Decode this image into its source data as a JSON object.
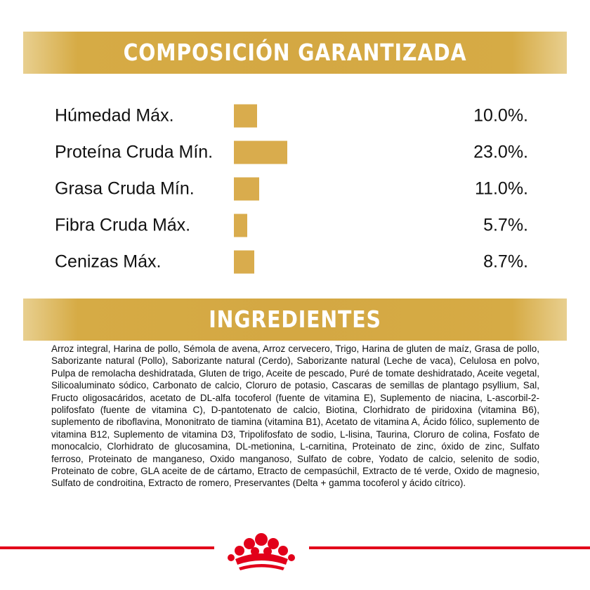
{
  "chart_data": {
    "type": "bar",
    "orientation": "horizontal",
    "title": "COMPOSICIÓN GARANTIZADA",
    "categories": [
      "Húmedad Máx.",
      "Proteína Cruda Mín.",
      "Grasa Cruda Mín.",
      "Fibra Cruda Máx.",
      "Cenizas Máx."
    ],
    "values": [
      10.0,
      23.0,
      11.0,
      5.7,
      8.7
    ],
    "value_labels": [
      "10.0%.",
      "23.0%.",
      "11.0%.",
      "5.7%.",
      "8.7%."
    ],
    "color": "#d9ac4d"
  },
  "ingredients": {
    "heading": "INGREDIENTES",
    "text": "Arroz integral, Harina de pollo, Sémola de avena, Arroz cervecero, Trigo, Harina de gluten de maíz, Grasa de pollo, Saborizante natural (Pollo), Saborizante natural (Cerdo), Saborizante natural (Leche de vaca), Celulosa en polvo, Pulpa de remolacha deshidratada, Gluten de trigo, Aceite de pescado, Puré de tomate deshidratado, Aceite vegetal, Silicoaluminato sódico, Carbonato de calcio, Cloruro de potasio, Cascaras de semillas de plantago psyllium, Sal, Fructo oligosacáridos, acetato de DL-alfa tocoferol (fuente de vitamina E), Suplemento de niacina, L-ascorbil-2-polifosfato (fuente de vitamina C), D-pantotenato de calcio, Biotina, Clorhidrato de piridoxina (vitamina B6), suplemento de riboflavina, Mononitrato de tiamina (vitamina B1), Acetato de vitamina A, Ácido fólico, suplemento de vitamina B12, Suplemento de vitamina D3, Tripolifosfato de sodio, L-lisina, Taurina, Cloruro de colina, Fosfato de monocalcio, Clorhidrato de glucosamina, DL-metionina, L-carnitina, Proteinato de zinc, óxido de zinc, Sulfato ferroso, Proteinato de manganeso, Oxido manganoso, Sulfato de cobre, Yodato de calcio, selenito de sodio, Proteinato de cobre, GLA aceite de de cártamo, Etracto de cempasúchil, Extracto de té verde, Oxido de magnesio, Sulfato de condroitina, Extracto de romero, Preservantes (Delta + gamma tocoferol y ácido cítrico)."
  }
}
